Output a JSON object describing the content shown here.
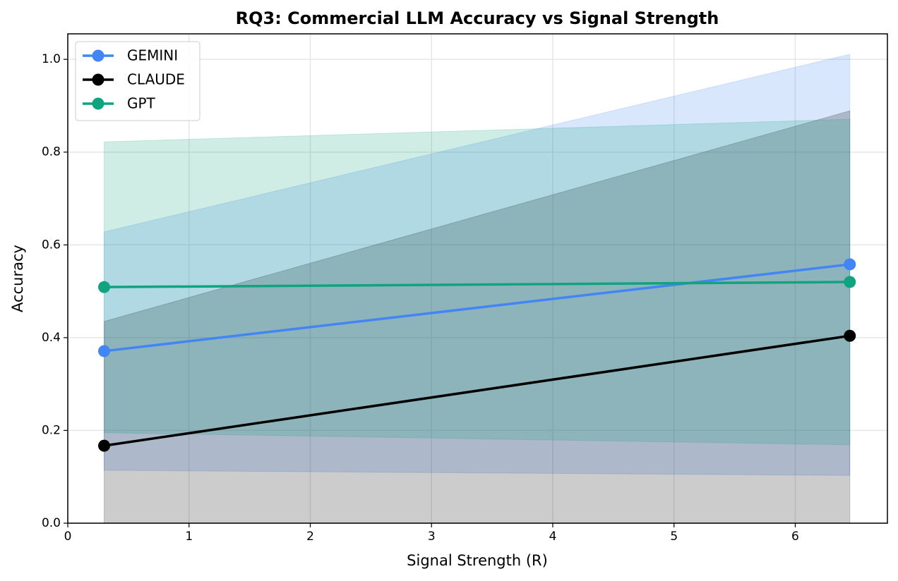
{
  "chart_data": {
    "type": "line",
    "title": "RQ3: Commercial LLM Accuracy vs Signal Strength",
    "xlabel": "Signal Strength (R)",
    "ylabel": "Accuracy",
    "x": [
      0.3,
      6.45
    ],
    "series": [
      {
        "name": "GEMINI",
        "color": "#4285f4",
        "values": [
          0.371,
          0.558
        ],
        "lower": [
          0.114,
          0.103
        ],
        "upper": [
          0.628,
          1.011
        ]
      },
      {
        "name": "CLAUDE",
        "color": "#000000",
        "values": [
          0.167,
          0.404
        ],
        "lower": [
          0,
          0
        ],
        "upper": [
          0.435,
          0.889
        ]
      },
      {
        "name": "GPT",
        "color": "#10a37f",
        "values": [
          0.509,
          0.52
        ],
        "lower": [
          0.195,
          0.169
        ],
        "upper": [
          0.822,
          0.871
        ]
      }
    ],
    "xlim": [
      0,
      6.76
    ],
    "ylim": [
      0,
      1.055
    ],
    "xticks": [
      0,
      1,
      2,
      3,
      4,
      5,
      6
    ],
    "yticks": [
      {
        "value": 0,
        "label": "0.0"
      },
      0.2,
      0.4,
      0.6,
      0.8,
      {
        "value": 1,
        "label": "1.0"
      }
    ],
    "grid": true,
    "legend": "upper-left"
  }
}
